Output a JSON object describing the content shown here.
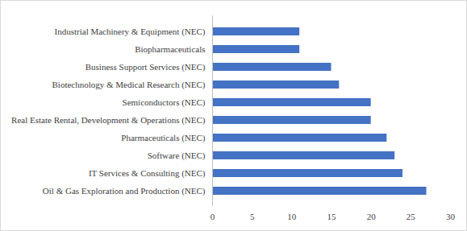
{
  "chart_data": {
    "type": "bar",
    "orientation": "horizontal",
    "categories": [
      "Industrial Machinery & Equipment (NEC)",
      "Biopharmaceuticals",
      "Business Support Services (NEC)",
      "Biotechnology & Medical Research (NEC)",
      "Semiconductors (NEC)",
      "Real Estate Rental, Development & Operations (NEC)",
      "Pharmaceuticals (NEC)",
      "Software (NEC)",
      "IT Services & Consulting (NEC)",
      "Oil & Gas Exploration and Production (NEC)"
    ],
    "values": [
      11,
      11,
      15,
      16,
      20,
      20,
      22,
      23,
      24,
      27
    ],
    "color": "#4472c4",
    "xlim": [
      0,
      30
    ],
    "xticks": [
      0,
      5,
      10,
      15,
      20,
      25,
      30
    ],
    "grid": false
  }
}
